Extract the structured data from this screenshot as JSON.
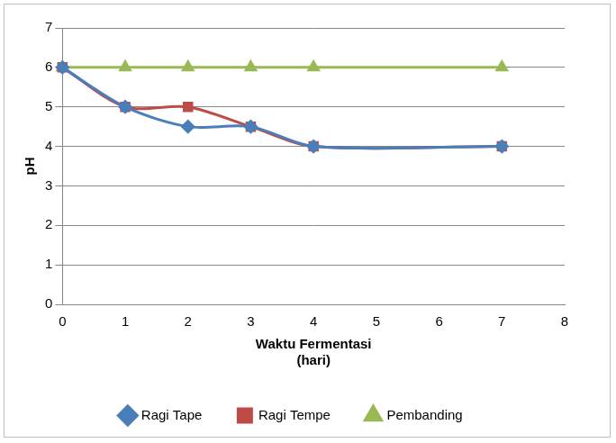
{
  "chart_data": {
    "type": "line",
    "x_label": "Waktu Fermentasi\n(hari)",
    "y_label": "pH",
    "x": [
      0,
      1,
      2,
      3,
      4,
      7
    ],
    "series": [
      {
        "name": "Ragi Tape",
        "color": "#4a7ebb",
        "marker": "diamond",
        "line_style": "smooth",
        "values": [
          6,
          5,
          4.5,
          4.5,
          4,
          4
        ]
      },
      {
        "name": "Ragi Tempe",
        "color": "#be4b48",
        "marker": "square",
        "line_style": "smooth",
        "values": [
          6,
          5,
          5,
          4.5,
          4,
          4
        ]
      },
      {
        "name": "Pembanding",
        "color": "#98b954",
        "marker": "triangle",
        "line_style": "smooth",
        "values": [
          6,
          6,
          6,
          6,
          6,
          6
        ]
      }
    ],
    "xlim": [
      0,
      8
    ],
    "xticks": [
      0,
      1,
      2,
      3,
      4,
      5,
      6,
      7,
      8
    ],
    "ylim": [
      0,
      7
    ],
    "yticks": [
      0,
      1,
      2,
      3,
      4,
      5,
      6,
      7
    ],
    "grid": true,
    "legend": "bottom"
  }
}
